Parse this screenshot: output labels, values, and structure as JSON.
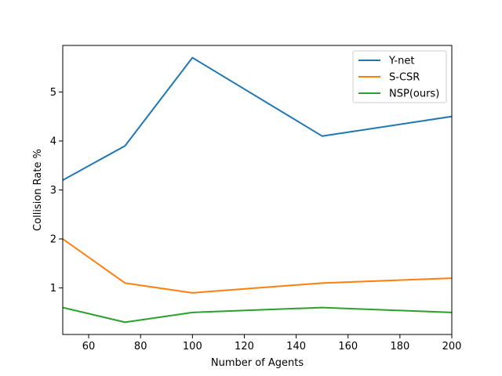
{
  "chart_data": {
    "type": "line",
    "title": "",
    "xlabel": "Number of Agents",
    "ylabel": "Collision Rate %",
    "xlim": [
      50,
      200
    ],
    "ylim": [
      0.05,
      5.95
    ],
    "xticks": [
      60,
      80,
      100,
      120,
      140,
      160,
      180,
      200
    ],
    "yticks": [
      1,
      2,
      3,
      4,
      5
    ],
    "grid": false,
    "legend_position": "top-right",
    "series": [
      {
        "name": "Y-net",
        "color": "#1f77b4",
        "x": [
          50,
          74,
          100,
          150,
          200
        ],
        "y": [
          3.2,
          3.9,
          5.7,
          4.1,
          4.5
        ]
      },
      {
        "name": "S-CSR",
        "color": "#ff7f0e",
        "x": [
          50,
          74,
          100,
          150,
          200
        ],
        "y": [
          2.0,
          1.1,
          0.9,
          1.1,
          1.2
        ]
      },
      {
        "name": "NSP(ours)",
        "color": "#2ca02c",
        "x": [
          50,
          74,
          100,
          150,
          200
        ],
        "y": [
          0.6,
          0.3,
          0.5,
          0.6,
          0.5
        ]
      }
    ]
  }
}
